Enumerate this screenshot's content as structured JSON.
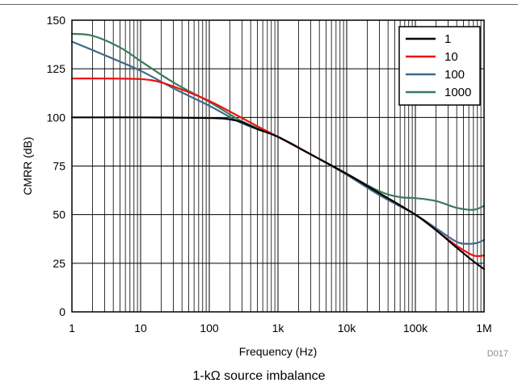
{
  "chart_data": {
    "type": "line",
    "title": "",
    "xlabel": "Frequency (Hz)",
    "ylabel": "CMRR (dB)",
    "x_scale": "log",
    "xlim": [
      1,
      1000000
    ],
    "ylim": [
      0,
      150
    ],
    "x_ticks": [
      1,
      10,
      100,
      1000,
      10000,
      100000,
      1000000
    ],
    "x_tick_labels": [
      "1",
      "10",
      "100",
      "1k",
      "10k",
      "100k",
      "1M"
    ],
    "y_ticks": [
      0,
      25,
      50,
      75,
      100,
      125,
      150
    ],
    "y_tick_labels": [
      "0",
      "25",
      "50",
      "75",
      "100",
      "125",
      "150"
    ],
    "grid": true,
    "legend_position": "top-right",
    "series": [
      {
        "name": "1",
        "color": "#000000",
        "x": [
          1,
          10,
          100,
          200,
          300,
          500,
          1000,
          3000,
          10000,
          30000,
          100000,
          200000,
          400000,
          700000,
          1000000
        ],
        "y": [
          100,
          100,
          99.7,
          99,
          97.5,
          94,
          90,
          81,
          71,
          61,
          50,
          42,
          33,
          26,
          22
        ]
      },
      {
        "name": "10",
        "color": "#ee1111",
        "x": [
          1,
          3,
          10,
          20,
          50,
          100,
          200,
          500,
          1000,
          3000,
          10000,
          30000,
          100000,
          200000,
          400000,
          700000,
          1000000
        ],
        "y": [
          120,
          120,
          119.7,
          118,
          113,
          108.5,
          103,
          95.5,
          90,
          81,
          71,
          61,
          50,
          42,
          34,
          29,
          29
        ]
      },
      {
        "name": "100",
        "color": "#3e6a8a",
        "x": [
          1,
          3,
          10,
          30,
          100,
          300,
          1000,
          3000,
          10000,
          30000,
          100000,
          200000,
          400000,
          600000,
          800000,
          1000000
        ],
        "y": [
          139,
          132,
          124,
          115,
          106,
          97,
          90,
          81,
          70.5,
          60,
          50,
          43,
          36,
          35,
          35.5,
          37
        ]
      },
      {
        "name": "1000",
        "color": "#3a7a5a",
        "x": [
          1,
          2,
          5,
          10,
          30,
          100,
          300,
          1000,
          3000,
          10000,
          30000,
          60000,
          100000,
          200000,
          400000,
          700000,
          1000000
        ],
        "y": [
          143,
          142,
          136,
          129,
          118,
          108,
          98,
          90,
          81,
          71,
          62,
          59,
          58.5,
          57,
          53.5,
          52.5,
          54.5
        ]
      }
    ],
    "annotation": "D017",
    "caption": "1-kΩ source imbalance"
  }
}
